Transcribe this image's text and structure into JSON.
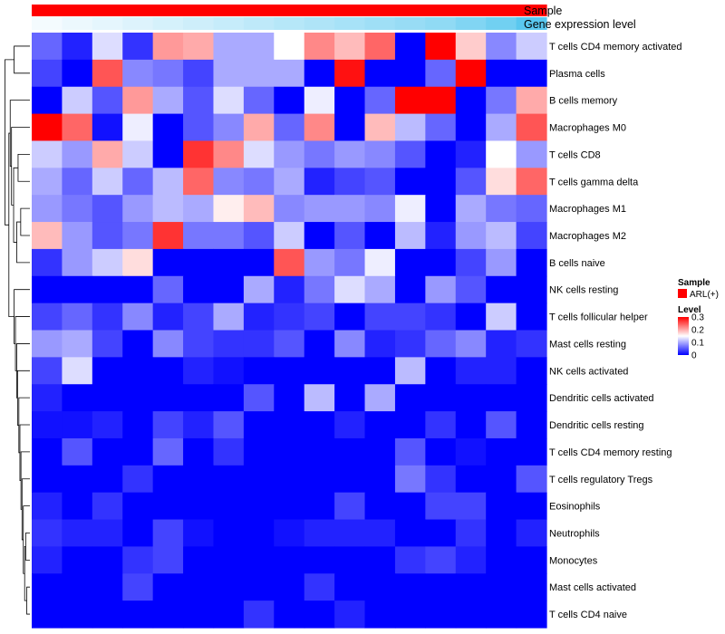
{
  "chart_data": {
    "type": "heatmap",
    "annotation_rows": [
      {
        "name": "Sample"
      },
      {
        "name": "Gene expression level"
      }
    ],
    "rows": [
      "T cells CD4 memory activated",
      "Plasma cells",
      "B cells memory",
      "Macrophages M0",
      "T cells CD8",
      "T cells gamma delta",
      "Macrophages M1",
      "Macrophages M2",
      "B cells naive",
      "NK cells resting",
      "T cells follicular helper",
      "Mast cells resting",
      "NK cells activated",
      "Dendritic cells activated",
      "Dendritic cells resting",
      "T cells CD4 memory resting",
      "T cells regulatory  Tregs",
      "Eosinophils",
      "Neutrophils",
      "Monocytes",
      "Mast cells activated",
      "T cells CD4 naive"
    ],
    "n_columns": 17,
    "values": [
      [
        0.06,
        0.02,
        0.13,
        0.03,
        0.21,
        0.2,
        0.1,
        0.1,
        0.15,
        0.22,
        0.19,
        0.24,
        0.0,
        0.3,
        0.18,
        0.08,
        0.12
      ],
      [
        0.04,
        0.0,
        0.25,
        0.08,
        0.07,
        0.04,
        0.1,
        0.1,
        0.1,
        0.0,
        0.29,
        0.0,
        0.0,
        0.06,
        0.3,
        0.0,
        0.0
      ],
      [
        0.0,
        0.12,
        0.05,
        0.21,
        0.1,
        0.05,
        0.13,
        0.06,
        0.0,
        0.14,
        0.0,
        0.06,
        0.3,
        0.3,
        0.0,
        0.07,
        0.2
      ],
      [
        0.3,
        0.24,
        0.01,
        0.14,
        0.0,
        0.05,
        0.08,
        0.2,
        0.06,
        0.22,
        0.0,
        0.19,
        0.11,
        0.06,
        0.0,
        0.1,
        0.25
      ],
      [
        0.12,
        0.09,
        0.2,
        0.12,
        0.0,
        0.27,
        0.22,
        0.13,
        0.09,
        0.07,
        0.09,
        0.08,
        0.05,
        0.0,
        0.02,
        0.15,
        0.09
      ],
      [
        0.1,
        0.06,
        0.12,
        0.06,
        0.11,
        0.24,
        0.08,
        0.07,
        0.1,
        0.02,
        0.04,
        0.05,
        0.0,
        0.0,
        0.05,
        0.17,
        0.24
      ],
      [
        0.09,
        0.07,
        0.05,
        0.09,
        0.11,
        0.1,
        0.16,
        0.19,
        0.08,
        0.09,
        0.09,
        0.08,
        0.14,
        0.0,
        0.1,
        0.07,
        0.06
      ],
      [
        0.19,
        0.09,
        0.05,
        0.07,
        0.27,
        0.07,
        0.07,
        0.05,
        0.12,
        0.0,
        0.05,
        0.0,
        0.11,
        0.02,
        0.09,
        0.11,
        0.04
      ],
      [
        0.03,
        0.09,
        0.12,
        0.17,
        0.0,
        0.0,
        0.0,
        0.0,
        0.25,
        0.09,
        0.07,
        0.14,
        0.0,
        0.0,
        0.04,
        0.09,
        0.0
      ],
      [
        0.0,
        0.0,
        0.0,
        0.0,
        0.06,
        0.0,
        0.0,
        0.1,
        0.02,
        0.07,
        0.13,
        0.1,
        0.0,
        0.09,
        0.05,
        0.0,
        0.0
      ],
      [
        0.04,
        0.06,
        0.03,
        0.08,
        0.02,
        0.04,
        0.1,
        0.02,
        0.03,
        0.04,
        0.0,
        0.04,
        0.04,
        0.03,
        0.0,
        0.12,
        0.0
      ],
      [
        0.09,
        0.1,
        0.04,
        0.0,
        0.08,
        0.04,
        0.03,
        0.03,
        0.05,
        0.0,
        0.08,
        0.02,
        0.03,
        0.06,
        0.08,
        0.02,
        0.03
      ],
      [
        0.04,
        0.13,
        0.0,
        0.0,
        0.0,
        0.02,
        0.01,
        0.0,
        0.0,
        0.0,
        0.0,
        0.0,
        0.11,
        0.0,
        0.02,
        0.02,
        0.0
      ],
      [
        0.02,
        0.0,
        0.0,
        0.0,
        0.0,
        0.0,
        0.0,
        0.05,
        0.0,
        0.11,
        0.0,
        0.1,
        0.0,
        0.0,
        0.0,
        0.0,
        0.0
      ],
      [
        0.01,
        0.01,
        0.02,
        0.0,
        0.04,
        0.02,
        0.05,
        0.0,
        0.0,
        0.0,
        0.02,
        0.0,
        0.0,
        0.03,
        0.0,
        0.05,
        0.0
      ],
      [
        0.0,
        0.05,
        0.0,
        0.0,
        0.06,
        0.0,
        0.03,
        0.0,
        0.0,
        0.0,
        0.0,
        0.0,
        0.05,
        0.0,
        0.01,
        0.0,
        0.0
      ],
      [
        0.0,
        0.0,
        0.0,
        0.03,
        0.0,
        0.0,
        0.0,
        0.0,
        0.0,
        0.0,
        0.0,
        0.0,
        0.07,
        0.03,
        0.0,
        0.0,
        0.05
      ],
      [
        0.02,
        0.0,
        0.03,
        0.0,
        0.0,
        0.0,
        0.0,
        0.0,
        0.0,
        0.0,
        0.04,
        0.0,
        0.0,
        0.04,
        0.04,
        0.0,
        0.0
      ],
      [
        0.03,
        0.02,
        0.02,
        0.0,
        0.04,
        0.01,
        0.0,
        0.0,
        0.01,
        0.02,
        0.02,
        0.02,
        0.0,
        0.0,
        0.03,
        0.0,
        0.02
      ],
      [
        0.02,
        0.0,
        0.0,
        0.03,
        0.04,
        0.0,
        0.0,
        0.0,
        0.0,
        0.0,
        0.0,
        0.0,
        0.03,
        0.04,
        0.02,
        0.0,
        0.0
      ],
      [
        0.0,
        0.0,
        0.0,
        0.04,
        0.0,
        0.0,
        0.0,
        0.0,
        0.0,
        0.03,
        0.0,
        0.0,
        0.0,
        0.0,
        0.0,
        0.0,
        0.0
      ],
      [
        0.0,
        0.0,
        0.0,
        0.0,
        0.0,
        0.0,
        0.0,
        0.03,
        0.0,
        0.0,
        0.02,
        0.0,
        0.0,
        0.0,
        0.0,
        0.0,
        0.0
      ]
    ],
    "gene_expression_level": [
      0.0,
      0.05,
      0.1,
      0.15,
      0.2,
      0.25,
      0.3,
      0.35,
      0.4,
      0.45,
      0.5,
      0.55,
      0.6,
      0.65,
      0.75,
      0.85,
      1.0
    ],
    "legend": {
      "sample": {
        "title": "Sample",
        "entry": "ARL(+)"
      },
      "level": {
        "title": "Level",
        "ticks": [
          "0.3",
          "0.2",
          "0.1",
          "0"
        ],
        "tick_values": [
          0.3,
          0.2,
          0.1,
          0.0
        ]
      }
    },
    "value_range": [
      0,
      0.3
    ],
    "colors": {
      "low": "#0000ff",
      "mid": "#ffffff",
      "high": "#ff0000",
      "sample": "#ff0000",
      "level_low": "#f4fbfe",
      "level_high": "#5ac8ef"
    },
    "clustering": "rows"
  }
}
